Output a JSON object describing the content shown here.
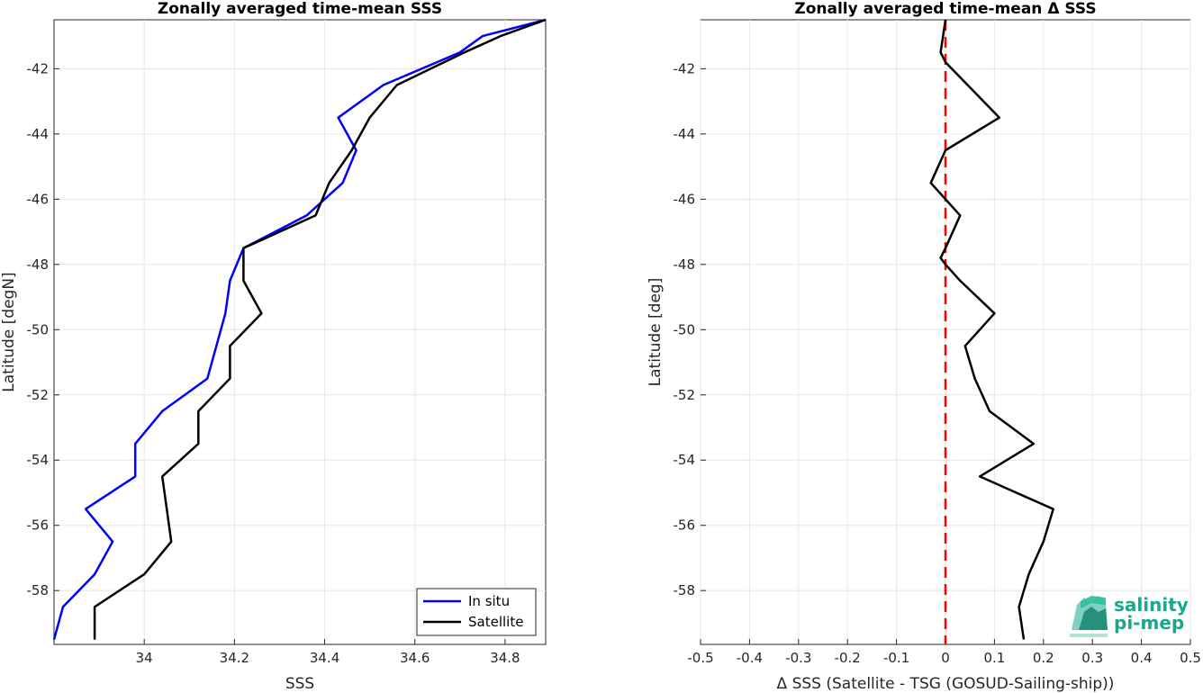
{
  "chart_data": [
    {
      "type": "line",
      "title": "Zonally averaged time-mean SSS",
      "xlabel": "SSS",
      "ylabel": "Latitude [degN]",
      "xlim": [
        33.8,
        34.89
      ],
      "ylim": [
        -59.65,
        -40.5
      ],
      "xticks": [
        34,
        34.2,
        34.4,
        34.6,
        34.8
      ],
      "xtick_labels": [
        "34",
        "34.2",
        "34.4",
        "34.6",
        "34.8"
      ],
      "yticks": [
        -58,
        -56,
        -54,
        -52,
        -50,
        -48,
        -46,
        -44,
        -42
      ],
      "ytick_labels": [
        "-58",
        "-56",
        "-54",
        "-52",
        "-50",
        "-48",
        "-46",
        "-44",
        "-42"
      ],
      "grid": true,
      "legend_position": "bottom-right",
      "series": [
        {
          "name": "In situ",
          "color": "#0000ff",
          "points": [
            [
              34.89,
              -40.5
            ],
            [
              34.75,
              -41.0
            ],
            [
              34.7,
              -41.5
            ],
            [
              34.53,
              -42.5
            ],
            [
              34.43,
              -43.5
            ],
            [
              34.47,
              -44.5
            ],
            [
              34.44,
              -45.5
            ],
            [
              34.36,
              -46.5
            ],
            [
              34.22,
              -47.5
            ],
            [
              34.19,
              -48.5
            ],
            [
              34.18,
              -49.5
            ],
            [
              34.16,
              -50.5
            ],
            [
              34.14,
              -51.5
            ],
            [
              34.04,
              -52.5
            ],
            [
              33.98,
              -53.5
            ],
            [
              33.98,
              -54.5
            ],
            [
              33.87,
              -55.5
            ],
            [
              33.93,
              -56.5
            ],
            [
              33.89,
              -57.5
            ],
            [
              33.82,
              -58.5
            ],
            [
              33.8,
              -59.5
            ]
          ]
        },
        {
          "name": "Satellite",
          "color": "#000000",
          "points": [
            [
              34.89,
              -40.5
            ],
            [
              34.79,
              -41.0
            ],
            [
              34.71,
              -41.5
            ],
            [
              34.56,
              -42.5
            ],
            [
              34.5,
              -43.5
            ],
            [
              34.46,
              -44.5
            ],
            [
              34.41,
              -45.5
            ],
            [
              34.38,
              -46.5
            ],
            [
              34.22,
              -47.5
            ],
            [
              34.22,
              -48.5
            ],
            [
              34.26,
              -49.5
            ],
            [
              34.19,
              -50.5
            ],
            [
              34.19,
              -51.5
            ],
            [
              34.12,
              -52.5
            ],
            [
              34.12,
              -53.5
            ],
            [
              34.04,
              -54.5
            ],
            [
              34.05,
              -55.5
            ],
            [
              34.06,
              -56.5
            ],
            [
              34.0,
              -57.5
            ],
            [
              33.89,
              -58.5
            ],
            [
              33.89,
              -59.5
            ]
          ]
        }
      ]
    },
    {
      "type": "line",
      "title": "Zonally averaged time-mean Δ SSS",
      "xlabel": "Δ SSS (Satellite - TSG (GOSUD-Sailing-ship))",
      "ylabel": "Latitude [deg]",
      "xlim": [
        -0.5,
        0.5
      ],
      "ylim": [
        -59.65,
        -40.5
      ],
      "xticks": [
        -0.5,
        -0.4,
        -0.3,
        -0.2,
        -0.1,
        0,
        0.1,
        0.2,
        0.3,
        0.4,
        0.5
      ],
      "xtick_labels": [
        "-0.5",
        "-0.4",
        "-0.3",
        "-0.2",
        "-0.1",
        "0",
        "0.1",
        "0.2",
        "0.3",
        "0.4",
        "0.5"
      ],
      "yticks": [
        -58,
        -56,
        -54,
        -52,
        -50,
        -48,
        -46,
        -44,
        -42
      ],
      "ytick_labels": [
        "-58",
        "-56",
        "-54",
        "-52",
        "-50",
        "-48",
        "-46",
        "-44",
        "-42"
      ],
      "grid": true,
      "reference_line": {
        "x": 0,
        "color": "#ff0000",
        "style": "dashed"
      },
      "series": [
        {
          "color": "#000000",
          "points": [
            [
              0.0,
              -40.5
            ],
            [
              -0.01,
              -41.5
            ],
            [
              0.0,
              -41.8
            ],
            [
              0.11,
              -43.5
            ],
            [
              0.0,
              -44.5
            ],
            [
              -0.03,
              -45.5
            ],
            [
              0.0,
              -46.0
            ],
            [
              0.03,
              -46.5
            ],
            [
              0.0,
              -47.5
            ],
            [
              -0.01,
              -47.8
            ],
            [
              0.0,
              -48.0
            ],
            [
              0.03,
              -48.5
            ],
            [
              0.1,
              -49.5
            ],
            [
              0.04,
              -50.5
            ],
            [
              0.06,
              -51.5
            ],
            [
              0.09,
              -52.5
            ],
            [
              0.18,
              -53.5
            ],
            [
              0.07,
              -54.5
            ],
            [
              0.22,
              -55.5
            ],
            [
              0.2,
              -56.5
            ],
            [
              0.17,
              -57.5
            ],
            [
              0.15,
              -58.5
            ],
            [
              0.16,
              -59.5
            ]
          ]
        }
      ]
    }
  ],
  "logo": {
    "line1": "salinity",
    "line2": "pi-mep",
    "color": "#1aa88c"
  }
}
